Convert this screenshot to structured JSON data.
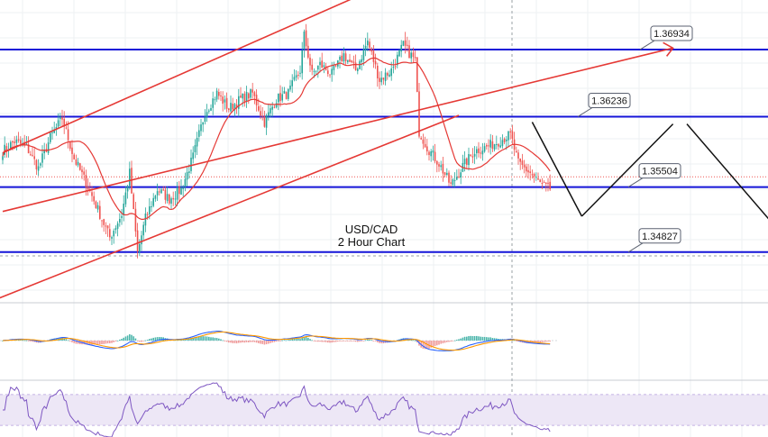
{
  "chart_data": {
    "type": "candlestick",
    "title": "USD/CAD",
    "subtitle": "2 Hour Chart",
    "price_ylim": [
      1.343,
      1.3745
    ],
    "colors": {
      "up": "#26a69a",
      "down": "#ef5350",
      "level_line": "#1515d8",
      "trend_line": "#e53935",
      "ma_line": "#e53935",
      "projection": "#111111",
      "label_bg": "#2962ff",
      "macd_line": "#2962ff",
      "signal_line": "#ff9800",
      "rsi_line": "#7e57c2",
      "rsi_band": "#ede7f6",
      "grid": "#eef0f3"
    },
    "grid": true,
    "levels": [
      {
        "value": 1.36934,
        "label": "1.36934"
      },
      {
        "value": 1.36236,
        "label": "1.36236"
      },
      {
        "value": 1.35504,
        "label": "1.35504"
      },
      {
        "value": 1.34827,
        "label": "1.34827"
      }
    ],
    "current_price": 1.3561,
    "candle_close_anchors": [
      [
        0,
        1.3588
      ],
      [
        6,
        1.3598
      ],
      [
        12,
        1.3592
      ],
      [
        18,
        1.357
      ],
      [
        24,
        1.3602
      ],
      [
        30,
        1.3622
      ],
      [
        36,
        1.358
      ],
      [
        42,
        1.3555
      ],
      [
        48,
        1.3527
      ],
      [
        54,
        1.3498
      ],
      [
        60,
        1.3522
      ],
      [
        64,
        1.3565
      ],
      [
        68,
        1.3482
      ],
      [
        72,
        1.3518
      ],
      [
        78,
        1.3548
      ],
      [
        84,
        1.3538
      ],
      [
        90,
        1.3548
      ],
      [
        96,
        1.3582
      ],
      [
        102,
        1.3628
      ],
      [
        108,
        1.3648
      ],
      [
        114,
        1.3632
      ],
      [
        120,
        1.3642
      ],
      [
        126,
        1.3648
      ],
      [
        132,
        1.3618
      ],
      [
        138,
        1.3642
      ],
      [
        144,
        1.3648
      ],
      [
        150,
        1.3672
      ],
      [
        152,
        1.3708
      ],
      [
        156,
        1.3668
      ],
      [
        160,
        1.3678
      ],
      [
        166,
        1.3668
      ],
      [
        172,
        1.3688
      ],
      [
        178,
        1.3672
      ],
      [
        184,
        1.3702
      ],
      [
        190,
        1.3662
      ],
      [
        196,
        1.3672
      ],
      [
        202,
        1.3698
      ],
      [
        208,
        1.3682
      ],
      [
        210,
        1.3608
      ],
      [
        214,
        1.3592
      ],
      [
        220,
        1.3575
      ],
      [
        226,
        1.3552
      ],
      [
        232,
        1.3572
      ],
      [
        238,
        1.3588
      ],
      [
        244,
        1.3592
      ],
      [
        250,
        1.3598
      ],
      [
        256,
        1.3605
      ],
      [
        260,
        1.3575
      ],
      [
        266,
        1.3565
      ],
      [
        272,
        1.3552
      ],
      [
        276,
        1.3548
      ]
    ],
    "sma_period": 20,
    "channel_line_1": [
      [
        0,
        1.3586
      ],
      [
        200,
        1.3768
      ]
    ],
    "channel_line_2": [
      [
        -4,
        1.3433
      ],
      [
        230,
        1.3625
      ]
    ],
    "trend_arrow": [
      [
        0,
        1.3525
      ],
      [
        338,
        1.3695
      ]
    ],
    "projection_path": [
      [
        267,
        1.3618
      ],
      [
        292,
        1.352
      ],
      [
        338,
        1.3616
      ],
      [
        345,
        1.3616
      ],
      [
        388,
        1.3513
      ]
    ],
    "macd_ylim": [
      -0.009,
      0.009
    ],
    "rsi_ylim": [
      15,
      85
    ],
    "rsi_band": [
      30,
      70
    ]
  }
}
